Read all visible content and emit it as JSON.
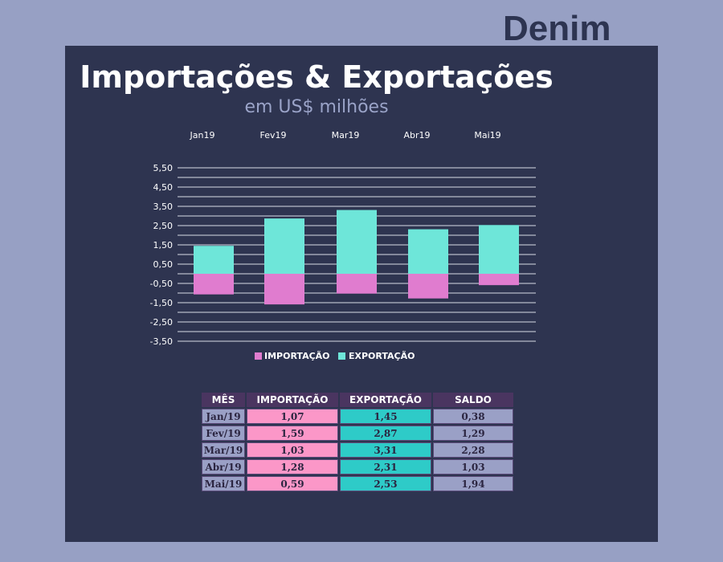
{
  "brand": "Denim",
  "colors": {
    "page_bg": "#97a0c4",
    "panel_bg": "#2e3450",
    "importacao": "#e07ccf",
    "exportacao": "#6ee6d9",
    "table_header": "#4a3560",
    "table_imp": "#fb97c8",
    "table_exp": "#2ecbc8",
    "table_neutral": "#9aa0c6"
  },
  "chart_data": {
    "type": "bar",
    "title": "Importações & Exportações",
    "subtitle": "em US$ milhões",
    "categories": [
      "Jan19",
      "Fev19",
      "Mar19",
      "Abr19",
      "Mai19"
    ],
    "series": [
      {
        "name": "IMPORTAÇÃO",
        "values": [
          -1.07,
          -1.59,
          -1.03,
          -1.28,
          -0.59
        ]
      },
      {
        "name": "EXPORTAÇÃO",
        "values": [
          1.45,
          2.87,
          3.31,
          2.31,
          2.53
        ]
      }
    ],
    "ylim": [
      -3.5,
      5.5
    ],
    "yticks": [
      "5,50",
      "4,50",
      "3,50",
      "2,50",
      "1,50",
      "0,50",
      "-0,50",
      "-1,50",
      "-2,50",
      "-3,50"
    ],
    "ytick_values": [
      5.5,
      4.5,
      3.5,
      2.5,
      1.5,
      0.5,
      -0.5,
      -1.5,
      -2.5,
      -3.5
    ],
    "grid": true,
    "legend": "bottom"
  },
  "table": {
    "headers": [
      "MÊS",
      "IMPORTAÇÃO",
      "EXPORTAÇÃO",
      "SALDO"
    ],
    "rows": [
      [
        "Jan/19",
        "1,07",
        "1,45",
        "0,38"
      ],
      [
        "Fev/19",
        "1,59",
        "2,87",
        "1,29"
      ],
      [
        "Mar/19",
        "1,03",
        "3,31",
        "2,28"
      ],
      [
        "Abr/19",
        "1,28",
        "2,31",
        "1,03"
      ],
      [
        "Mai/19",
        "0,59",
        "2,53",
        "1,94"
      ]
    ]
  }
}
